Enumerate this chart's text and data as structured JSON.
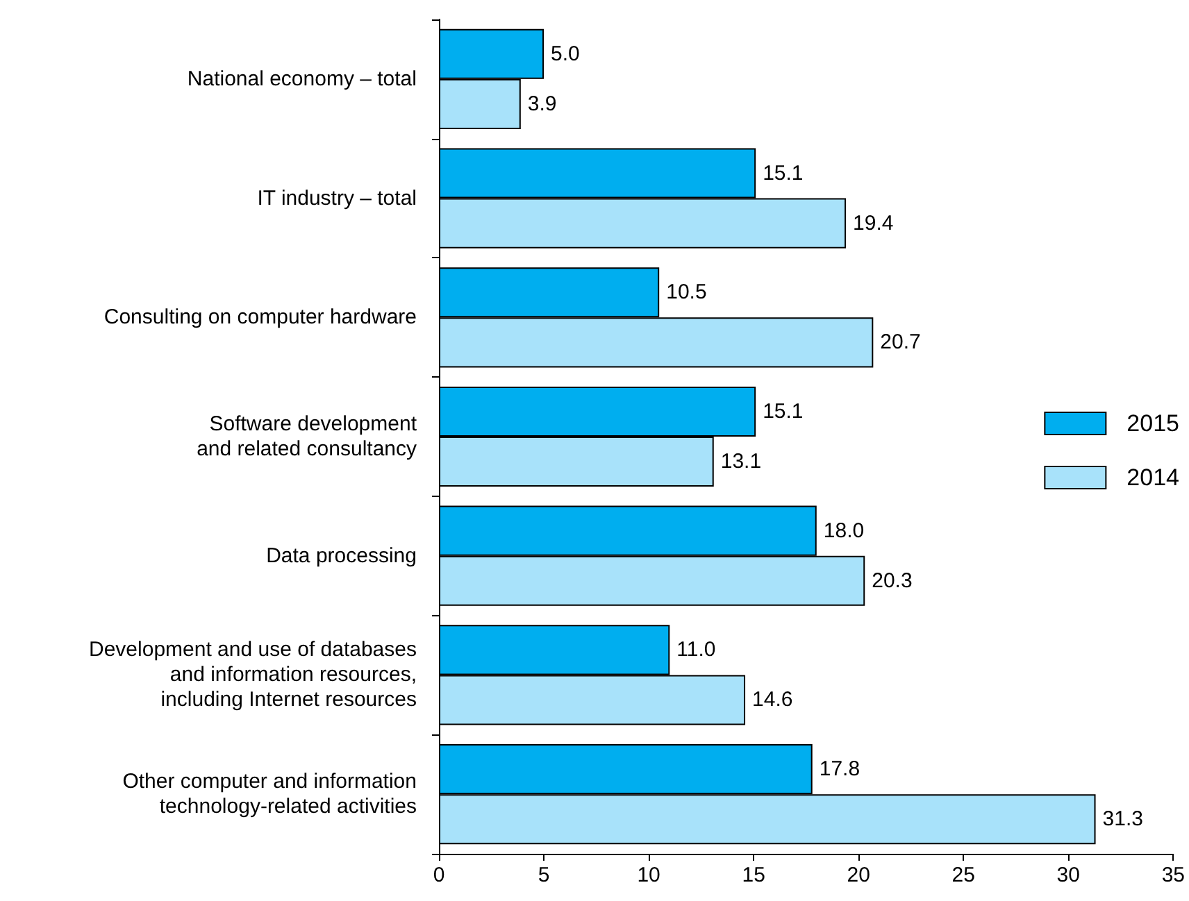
{
  "chart_data": {
    "type": "bar",
    "orientation": "horizontal",
    "categories": [
      "National economy – total",
      "IT industry – total",
      "Consulting on computer hardware",
      "Software development\nand related consultancy",
      "Data processing",
      "Development and use of databases\nand information resources,\nincluding Internet resources",
      "Other computer and information\ntechnology-related activities"
    ],
    "series": [
      {
        "name": "2015",
        "color": "#00aeef",
        "values": [
          5.0,
          15.1,
          10.5,
          15.1,
          18.0,
          11.0,
          17.8
        ],
        "value_labels": [
          "5.0",
          "15.1",
          "10.5",
          "15.1",
          "18.0",
          "11.0",
          "17.8"
        ]
      },
      {
        "name": "2014",
        "color": "#a8e2fa",
        "values": [
          3.9,
          19.4,
          20.7,
          13.1,
          20.3,
          14.6,
          31.3
        ],
        "value_labels": [
          "3.9",
          "19.4",
          "20.7",
          "13.1",
          "20.3",
          "14.6",
          "31.3"
        ]
      }
    ],
    "xlim": [
      0,
      35
    ],
    "xticks": [
      0,
      5,
      10,
      15,
      20,
      25,
      30,
      35
    ],
    "grid": false,
    "legend": "right"
  }
}
